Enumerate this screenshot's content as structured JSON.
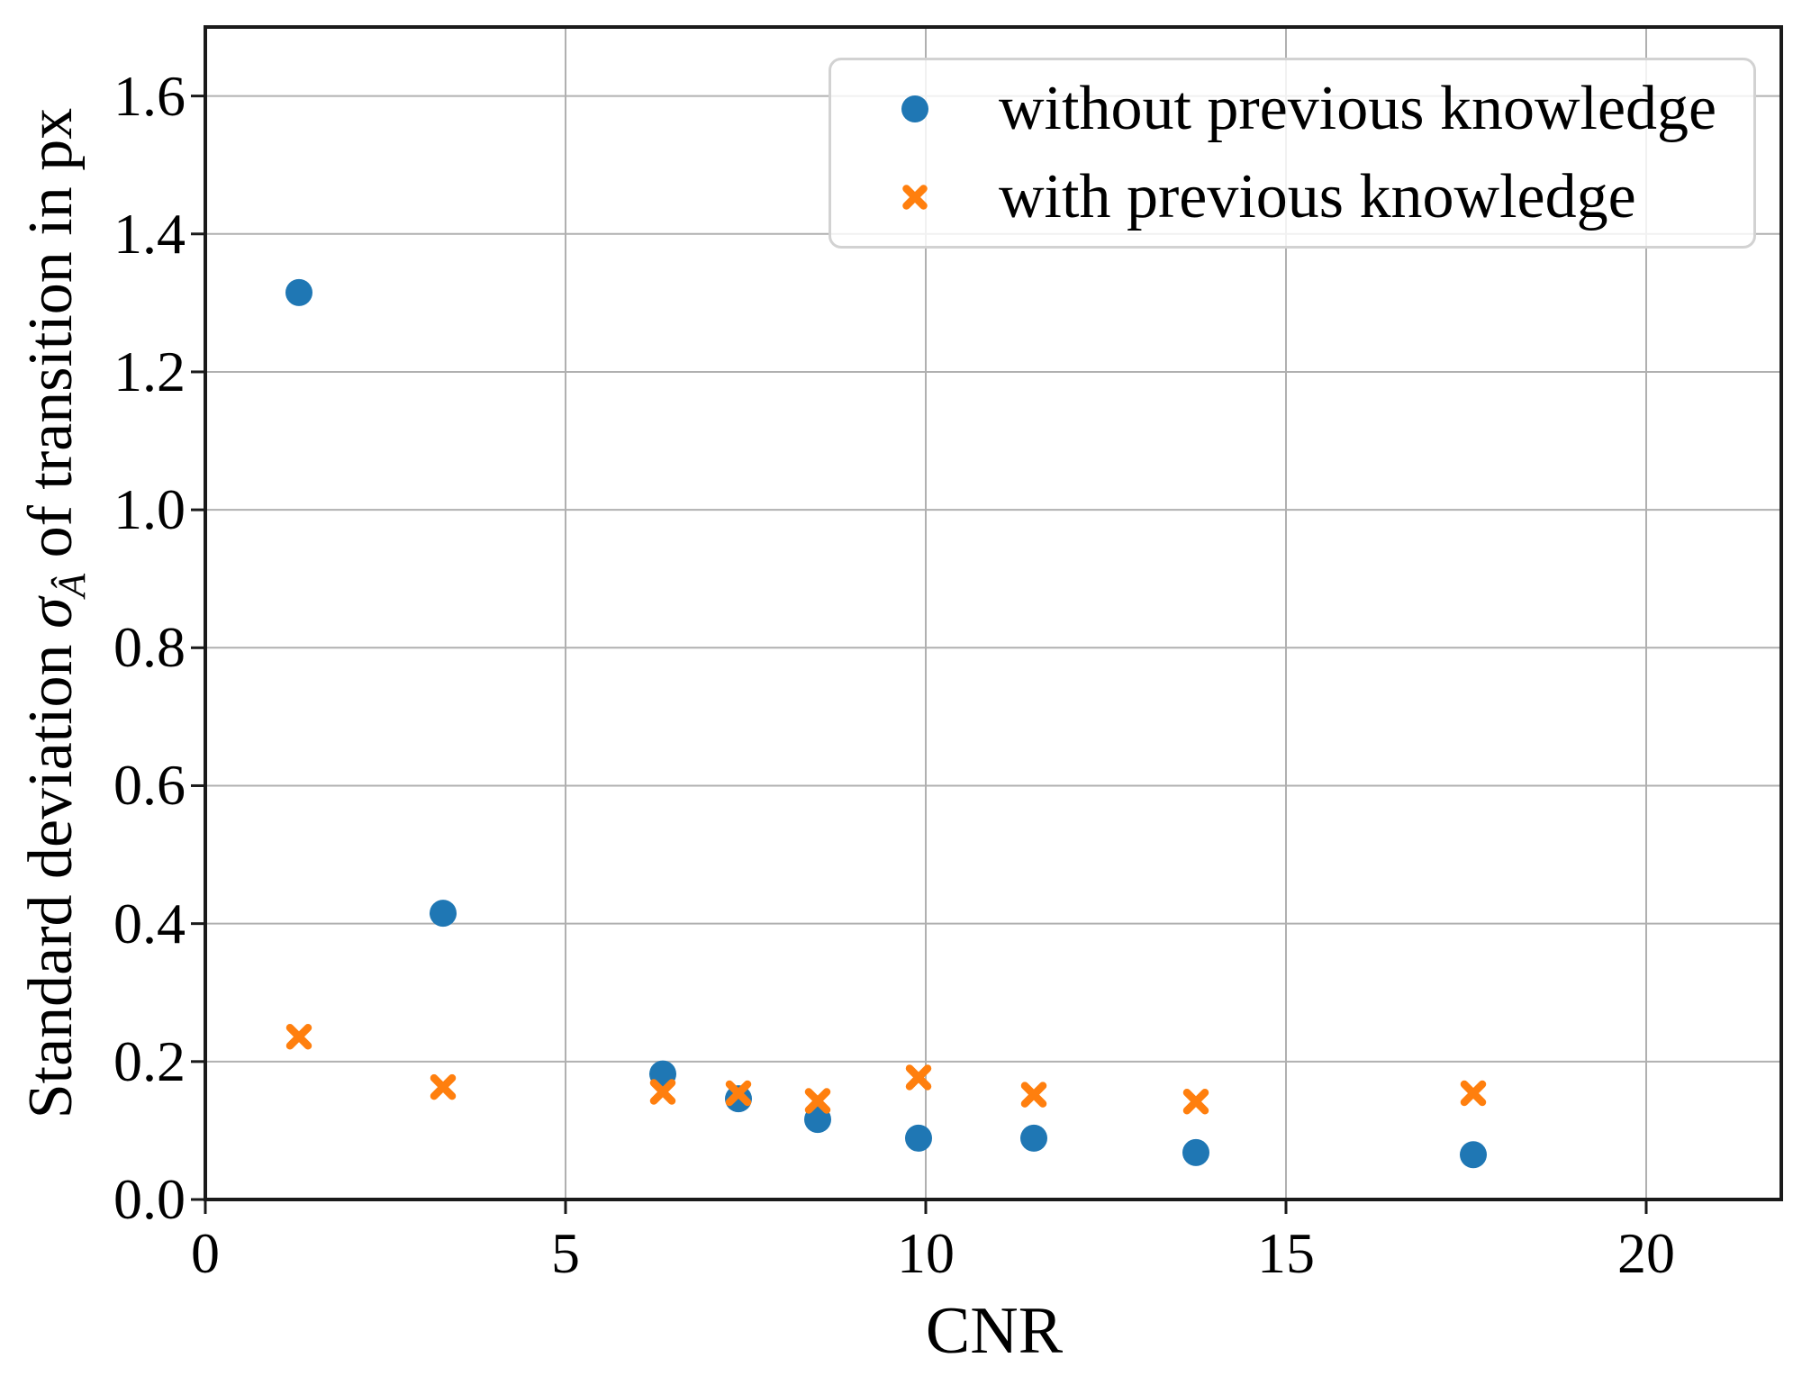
{
  "chart_data": {
    "type": "scatter",
    "title": "",
    "xlabel": "CNR",
    "ylabel": "Standard deviation σÂ of transition in px",
    "ylabel_parts": {
      "prefix": "Standard deviation ",
      "sigma": "σ",
      "subscript": "Â",
      "suffix": " of transition in px"
    },
    "xlim": [
      0,
      21.875
    ],
    "ylim": [
      0,
      1.7
    ],
    "grid": true,
    "legend_position": "upper right",
    "xticks": {
      "values": [
        0,
        5,
        10,
        15,
        20
      ],
      "labels": [
        "0",
        "5",
        "10",
        "15",
        "20"
      ]
    },
    "yticks": {
      "values": [
        0.0,
        0.2,
        0.4,
        0.6,
        0.8,
        1.0,
        1.2,
        1.4,
        1.6
      ],
      "labels": [
        "0.0",
        "0.2",
        "0.4",
        "0.6",
        "0.8",
        "1.0",
        "1.2",
        "1.4",
        "1.6"
      ]
    },
    "x_shared": [
      1.3,
      3.3,
      6.35,
      7.4,
      8.5,
      9.9,
      11.5,
      13.75,
      17.6
    ],
    "series": [
      {
        "name": "without previous knowledge",
        "marker": "circle",
        "color": "#1f77b4",
        "x": [
          1.3,
          3.3,
          6.35,
          7.4,
          8.5,
          9.9,
          11.5,
          13.75,
          17.6
        ],
        "y": [
          1.315,
          0.415,
          0.182,
          0.146,
          0.116,
          0.089,
          0.089,
          0.068,
          0.065
        ]
      },
      {
        "name": "with previous knowledge",
        "marker": "x",
        "color": "#ff7f0e",
        "x": [
          1.3,
          3.3,
          6.35,
          7.4,
          8.5,
          9.9,
          11.5,
          13.75,
          17.6
        ],
        "y": [
          0.236,
          0.163,
          0.156,
          0.154,
          0.143,
          0.177,
          0.152,
          0.142,
          0.154
        ]
      }
    ],
    "style": {
      "grid_color": "#b0b0b0",
      "spine_color": "#1a1a1a",
      "blue": "#1f77b4",
      "orange": "#ff7f0e"
    }
  }
}
